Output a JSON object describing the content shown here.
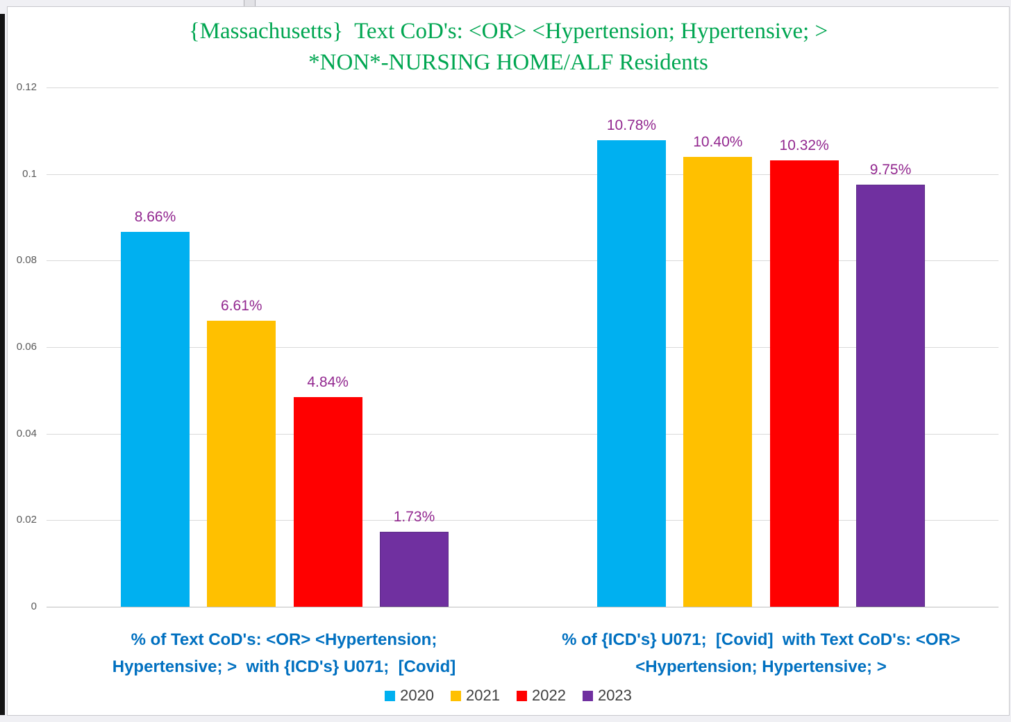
{
  "chart_data": {
    "type": "bar",
    "title": "{Massachusetts}  Text CoD's: <OR> <Hypertension; Hypertensive; >\n*NON*-NURSING HOME/ALF Residents",
    "categories": [
      "% of Text CoD's: <OR> <Hypertension;\nHypertensive; >  with {ICD's} U071;  [Covid]",
      "% of {ICD's} U071;  [Covid]  with Text CoD's: <OR>\n<Hypertension; Hypertensive; >"
    ],
    "series": [
      {
        "name": "2020",
        "color": "#00B0F0",
        "values": [
          0.0866,
          0.1078
        ],
        "labels": [
          "8.66%",
          "10.78%"
        ]
      },
      {
        "name": "2021",
        "color": "#FFC000",
        "values": [
          0.0661,
          0.104
        ],
        "labels": [
          "6.61%",
          "10.40%"
        ]
      },
      {
        "name": "2022",
        "color": "#FF0000",
        "values": [
          0.0484,
          0.1032
        ],
        "labels": [
          "4.84%",
          "10.32%"
        ]
      },
      {
        "name": "2023",
        "color": "#7030A0",
        "border_color": "#5C2D87",
        "values": [
          0.0173,
          0.0975
        ],
        "labels": [
          "1.73%",
          "9.75%"
        ]
      }
    ],
    "y_ticks": [
      {
        "label": "0",
        "value": 0
      },
      {
        "label": "0.02",
        "value": 0.02
      },
      {
        "label": "0.04",
        "value": 0.04
      },
      {
        "label": "0.06",
        "value": 0.06
      },
      {
        "label": "0.08",
        "value": 0.08
      },
      {
        "label": "0.1",
        "value": 0.1
      },
      {
        "label": "0.12",
        "value": 0.12
      }
    ],
    "ylim": [
      0,
      0.12
    ],
    "grid": true,
    "legend_position": "bottom",
    "colors": {
      "title": "#00A651",
      "data_label": "#92278F",
      "category_label": "#0070C0",
      "axis_tick": "#595959",
      "legend_text": "#3F3F3F",
      "gridline": "#D9D9D9"
    }
  }
}
